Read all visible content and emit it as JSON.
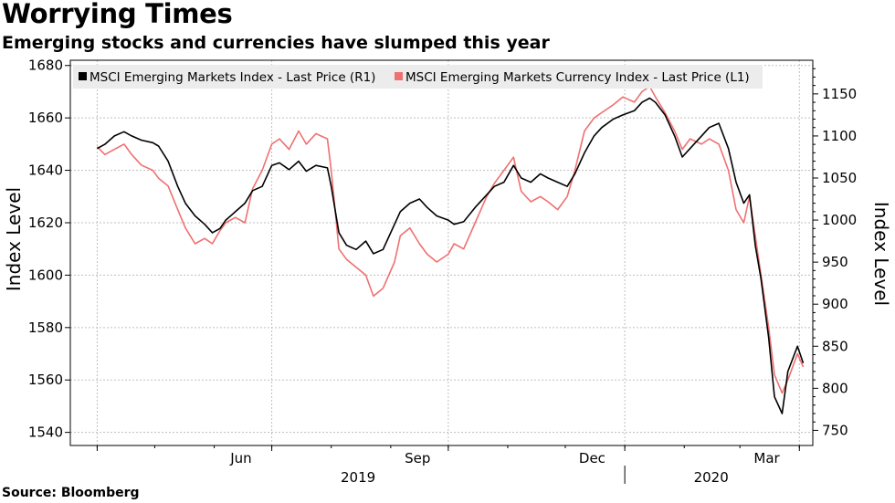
{
  "header": {
    "title": "Worrying Times",
    "subtitle": "Emerging stocks and currencies have slumped this year"
  },
  "footer": {
    "source": "Source: Bloomberg"
  },
  "colors": {
    "index_series": "#000000",
    "currency_series": "#f07070",
    "grid": "#bfbfbf"
  },
  "chart_data": {
    "type": "line",
    "title": "Worrying Times",
    "subtitle": "Emerging stocks and currencies have slumped this year",
    "ylabel_left": "Index Level",
    "ylabel_right": "Index Level",
    "ylim_left": [
      1535,
      1682
    ],
    "ylim_right": [
      732,
      1190
    ],
    "yticks_left": [
      1540,
      1560,
      1580,
      1600,
      1620,
      1640,
      1660,
      1680
    ],
    "yticks_right": [
      750,
      800,
      850,
      900,
      950,
      1000,
      1050,
      1100,
      1150
    ],
    "x_month_ticks": [
      "Jun",
      "Sep",
      "Dec",
      "Mar"
    ],
    "x_year_labels": [
      "2019",
      "2020"
    ],
    "legend": [
      {
        "name": "MSCI Emerging Markets Index - Last Price (R1)",
        "axis": "right"
      },
      {
        "name": "MSCI Emerging Markets Currency Index - Last Price (L1)",
        "axis": "left"
      }
    ],
    "series": [
      {
        "name": "MSCI Emerging Markets Index - Last Price (R1)",
        "axis": "right",
        "points": [
          [
            "2019-04-01",
            1085
          ],
          [
            "2019-04-05",
            1090
          ],
          [
            "2019-04-10",
            1100
          ],
          [
            "2019-04-15",
            1105
          ],
          [
            "2019-04-19",
            1100
          ],
          [
            "2019-04-24",
            1095
          ],
          [
            "2019-04-30",
            1092
          ],
          [
            "2019-05-03",
            1088
          ],
          [
            "2019-05-08",
            1070
          ],
          [
            "2019-05-13",
            1040
          ],
          [
            "2019-05-17",
            1020
          ],
          [
            "2019-05-22",
            1005
          ],
          [
            "2019-05-27",
            995
          ],
          [
            "2019-05-31",
            985
          ],
          [
            "2019-06-04",
            990
          ],
          [
            "2019-06-07",
            1000
          ],
          [
            "2019-06-12",
            1010
          ],
          [
            "2019-06-17",
            1020
          ],
          [
            "2019-06-21",
            1035
          ],
          [
            "2019-06-26",
            1040
          ],
          [
            "2019-07-01",
            1065
          ],
          [
            "2019-07-05",
            1068
          ],
          [
            "2019-07-10",
            1060
          ],
          [
            "2019-07-15",
            1070
          ],
          [
            "2019-07-19",
            1058
          ],
          [
            "2019-07-24",
            1065
          ],
          [
            "2019-07-30",
            1062
          ],
          [
            "2019-08-01",
            1040
          ],
          [
            "2019-08-05",
            985
          ],
          [
            "2019-08-09",
            970
          ],
          [
            "2019-08-14",
            965
          ],
          [
            "2019-08-19",
            975
          ],
          [
            "2019-08-23",
            960
          ],
          [
            "2019-08-28",
            965
          ],
          [
            "2019-09-03",
            995
          ],
          [
            "2019-09-06",
            1010
          ],
          [
            "2019-09-11",
            1020
          ],
          [
            "2019-09-16",
            1025
          ],
          [
            "2019-09-20",
            1015
          ],
          [
            "2019-09-25",
            1005
          ],
          [
            "2019-10-01",
            1000
          ],
          [
            "2019-10-04",
            995
          ],
          [
            "2019-10-09",
            998
          ],
          [
            "2019-10-15",
            1015
          ],
          [
            "2019-10-21",
            1030
          ],
          [
            "2019-10-25",
            1040
          ],
          [
            "2019-10-30",
            1045
          ],
          [
            "2019-11-04",
            1065
          ],
          [
            "2019-11-08",
            1050
          ],
          [
            "2019-11-13",
            1045
          ],
          [
            "2019-11-18",
            1055
          ],
          [
            "2019-11-22",
            1050
          ],
          [
            "2019-11-27",
            1045
          ],
          [
            "2019-12-02",
            1040
          ],
          [
            "2019-12-06",
            1055
          ],
          [
            "2019-12-11",
            1080
          ],
          [
            "2019-12-16",
            1100
          ],
          [
            "2019-12-20",
            1110
          ],
          [
            "2019-12-26",
            1120
          ],
          [
            "2019-12-31",
            1125
          ],
          [
            "2020-01-06",
            1130
          ],
          [
            "2020-01-10",
            1140
          ],
          [
            "2020-01-14",
            1145
          ],
          [
            "2020-01-17",
            1140
          ],
          [
            "2020-01-22",
            1125
          ],
          [
            "2020-01-27",
            1100
          ],
          [
            "2020-01-31",
            1075
          ],
          [
            "2020-02-04",
            1085
          ],
          [
            "2020-02-10",
            1100
          ],
          [
            "2020-02-14",
            1110
          ],
          [
            "2020-02-19",
            1115
          ],
          [
            "2020-02-24",
            1085
          ],
          [
            "2020-02-28",
            1045
          ],
          [
            "2020-03-03",
            1020
          ],
          [
            "2020-03-06",
            1030
          ],
          [
            "2020-03-09",
            970
          ],
          [
            "2020-03-12",
            930
          ],
          [
            "2020-03-16",
            860
          ],
          [
            "2020-03-19",
            790
          ],
          [
            "2020-03-23",
            770
          ],
          [
            "2020-03-26",
            820
          ],
          [
            "2020-03-31",
            850
          ],
          [
            "2020-04-03",
            830
          ]
        ]
      },
      {
        "name": "MSCI Emerging Markets Currency Index - Last Price (L1)",
        "axis": "left",
        "points": [
          [
            "2019-04-01",
            1649
          ],
          [
            "2019-04-05",
            1646
          ],
          [
            "2019-04-10",
            1648
          ],
          [
            "2019-04-15",
            1650
          ],
          [
            "2019-04-19",
            1646
          ],
          [
            "2019-04-24",
            1642
          ],
          [
            "2019-04-30",
            1640
          ],
          [
            "2019-05-03",
            1637
          ],
          [
            "2019-05-08",
            1634
          ],
          [
            "2019-05-13",
            1625
          ],
          [
            "2019-05-17",
            1618
          ],
          [
            "2019-05-22",
            1612
          ],
          [
            "2019-05-27",
            1614
          ],
          [
            "2019-05-31",
            1612
          ],
          [
            "2019-06-04",
            1617
          ],
          [
            "2019-06-07",
            1620
          ],
          [
            "2019-06-12",
            1622
          ],
          [
            "2019-06-17",
            1620
          ],
          [
            "2019-06-21",
            1633
          ],
          [
            "2019-06-26",
            1640
          ],
          [
            "2019-07-01",
            1650
          ],
          [
            "2019-07-05",
            1652
          ],
          [
            "2019-07-10",
            1648
          ],
          [
            "2019-07-15",
            1655
          ],
          [
            "2019-07-19",
            1650
          ],
          [
            "2019-07-24",
            1654
          ],
          [
            "2019-07-30",
            1652
          ],
          [
            "2019-08-01",
            1640
          ],
          [
            "2019-08-05",
            1610
          ],
          [
            "2019-08-09",
            1606
          ],
          [
            "2019-08-14",
            1603
          ],
          [
            "2019-08-19",
            1600
          ],
          [
            "2019-08-23",
            1592
          ],
          [
            "2019-08-28",
            1595
          ],
          [
            "2019-09-03",
            1605
          ],
          [
            "2019-09-06",
            1615
          ],
          [
            "2019-09-11",
            1618
          ],
          [
            "2019-09-16",
            1612
          ],
          [
            "2019-09-20",
            1608
          ],
          [
            "2019-09-25",
            1605
          ],
          [
            "2019-10-01",
            1608
          ],
          [
            "2019-10-04",
            1612
          ],
          [
            "2019-10-09",
            1610
          ],
          [
            "2019-10-15",
            1620
          ],
          [
            "2019-10-21",
            1630
          ],
          [
            "2019-10-25",
            1635
          ],
          [
            "2019-10-30",
            1640
          ],
          [
            "2019-11-04",
            1645
          ],
          [
            "2019-11-08",
            1632
          ],
          [
            "2019-11-13",
            1628
          ],
          [
            "2019-11-18",
            1630
          ],
          [
            "2019-11-22",
            1628
          ],
          [
            "2019-11-27",
            1625
          ],
          [
            "2019-12-02",
            1630
          ],
          [
            "2019-12-06",
            1640
          ],
          [
            "2019-12-11",
            1655
          ],
          [
            "2019-12-16",
            1660
          ],
          [
            "2019-12-20",
            1662
          ],
          [
            "2019-12-26",
            1665
          ],
          [
            "2019-12-31",
            1668
          ],
          [
            "2020-01-06",
            1666
          ],
          [
            "2020-01-10",
            1670
          ],
          [
            "2020-01-14",
            1672
          ],
          [
            "2020-01-17",
            1668
          ],
          [
            "2020-01-22",
            1662
          ],
          [
            "2020-01-27",
            1655
          ],
          [
            "2020-01-31",
            1648
          ],
          [
            "2020-02-04",
            1652
          ],
          [
            "2020-02-10",
            1650
          ],
          [
            "2020-02-14",
            1652
          ],
          [
            "2020-02-19",
            1650
          ],
          [
            "2020-02-24",
            1640
          ],
          [
            "2020-02-28",
            1625
          ],
          [
            "2020-03-03",
            1620
          ],
          [
            "2020-03-06",
            1630
          ],
          [
            "2020-03-09",
            1615
          ],
          [
            "2020-03-12",
            1600
          ],
          [
            "2020-03-16",
            1580
          ],
          [
            "2020-03-19",
            1562
          ],
          [
            "2020-03-23",
            1555
          ],
          [
            "2020-03-26",
            1560
          ],
          [
            "2020-03-31",
            1570
          ],
          [
            "2020-04-03",
            1565
          ]
        ]
      }
    ]
  }
}
